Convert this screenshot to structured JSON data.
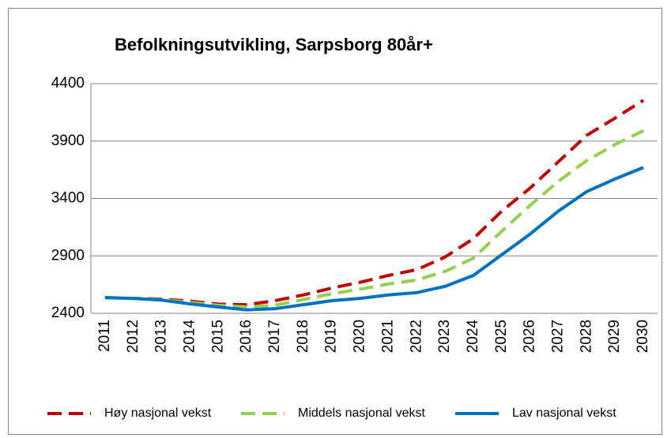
{
  "chart_data": {
    "type": "line",
    "title": "Befolkningsutvikling, Sarpsborg 80år+",
    "categories": [
      "2011",
      "2012",
      "2013",
      "2014",
      "2015",
      "2016",
      "2017",
      "2018",
      "2019",
      "2020",
      "2021",
      "2022",
      "2023",
      "2024",
      "2025",
      "2026",
      "2027",
      "2028",
      "2029",
      "2030"
    ],
    "series": [
      {
        "name": "Høy nasjonal vekst",
        "color": "#c00000",
        "dash": "dashed",
        "values": [
          2537,
          2530,
          2525,
          2505,
          2480,
          2475,
          2510,
          2560,
          2620,
          2670,
          2730,
          2780,
          2890,
          3050,
          3290,
          3490,
          3720,
          3950,
          4100,
          4255
        ]
      },
      {
        "name": "Middels nasjonal vekst",
        "color": "#92d050",
        "dash": "dashed",
        "values": [
          2537,
          2530,
          2520,
          2495,
          2470,
          2455,
          2470,
          2520,
          2570,
          2610,
          2655,
          2690,
          2765,
          2880,
          3115,
          3340,
          3550,
          3730,
          3870,
          3990
        ]
      },
      {
        "name": "Lav nasjonal vekst",
        "color": "#0070c0",
        "dash": "solid",
        "values": [
          2537,
          2530,
          2515,
          2482,
          2455,
          2430,
          2440,
          2475,
          2510,
          2530,
          2560,
          2580,
          2635,
          2730,
          2910,
          3090,
          3290,
          3460,
          3570,
          3670
        ]
      }
    ],
    "ylim": [
      2400,
      4400
    ],
    "yticks": [
      2400,
      2900,
      3400,
      3900,
      4400
    ],
    "grid": true,
    "legend": "bottom"
  }
}
